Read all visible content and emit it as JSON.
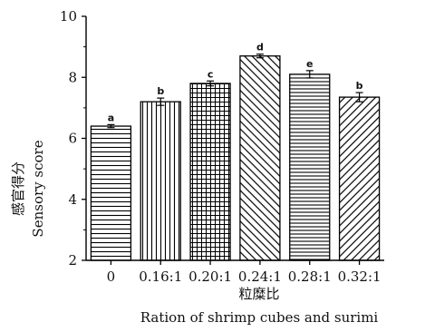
{
  "chart_data": {
    "type": "bar",
    "categories": [
      "0",
      "0.16:1",
      "0.20:1",
      "0.24:1",
      "0.28:1",
      "0.32:1"
    ],
    "values": [
      6.4,
      7.2,
      7.8,
      8.7,
      8.1,
      7.35
    ],
    "errors": [
      0.05,
      0.12,
      0.08,
      0.06,
      0.12,
      0.15
    ],
    "significance_letters": [
      "a",
      "b",
      "c",
      "d",
      "e",
      "b"
    ],
    "patterns": [
      "horizontal-lines",
      "vertical-lines",
      "grid",
      "diagonal-down",
      "horizontal-lines-dense",
      "diagonal-up"
    ],
    "ylabel_cn": "感官得分",
    "ylabel_en": "Sensory score",
    "xlabel_cn": "粒糜比",
    "xlabel_en": "Ration of shrimp cubes and surimi",
    "ylim": [
      2,
      10
    ],
    "yticks": [
      "2",
      "4",
      "6",
      "8",
      "10"
    ],
    "bar_color": "#000000",
    "background": "#ffffff"
  }
}
